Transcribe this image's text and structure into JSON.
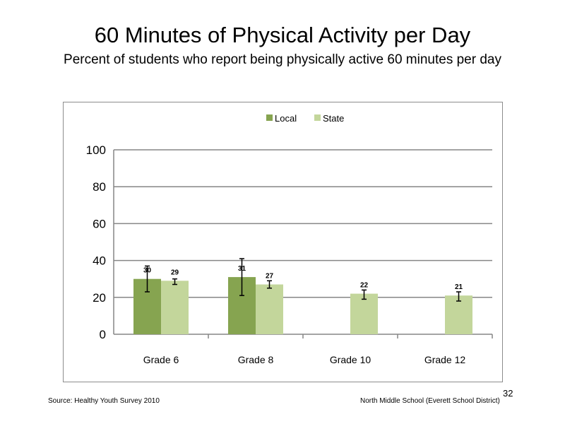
{
  "slide": {
    "title": "60 Minutes of Physical Activity per Day",
    "subtitle": "Percent of students who report being physically active 60 minutes per day",
    "source": "Source: Healthy Youth Survey 2010",
    "school": "North Middle School (Everett School District)",
    "page_number": "32"
  },
  "chart_data": {
    "type": "bar",
    "categories": [
      "Grade 6",
      "Grade 8",
      "Grade 10",
      "Grade 12"
    ],
    "series": [
      {
        "name": "Local",
        "color": "#86a450",
        "values": [
          30,
          31,
          null,
          null
        ],
        "labels": [
          "30",
          "31",
          "",
          ""
        ],
        "error_low": [
          23,
          21,
          null,
          null
        ],
        "error_high": [
          37,
          41,
          null,
          null
        ]
      },
      {
        "name": "State",
        "color": "#c3d69b",
        "values": [
          29,
          27,
          22,
          21
        ],
        "labels": [
          "29",
          "27",
          "22",
          "21"
        ],
        "error_low": [
          27,
          25,
          19,
          18
        ],
        "error_high": [
          30,
          29,
          24,
          23
        ]
      }
    ],
    "ylim": [
      0,
      100
    ],
    "yticks": [
      "0",
      "20",
      "40",
      "60",
      "80",
      "100"
    ],
    "ytick_values": [
      0,
      20,
      40,
      60,
      80,
      100
    ],
    "grid": true,
    "legend": "top-center"
  }
}
